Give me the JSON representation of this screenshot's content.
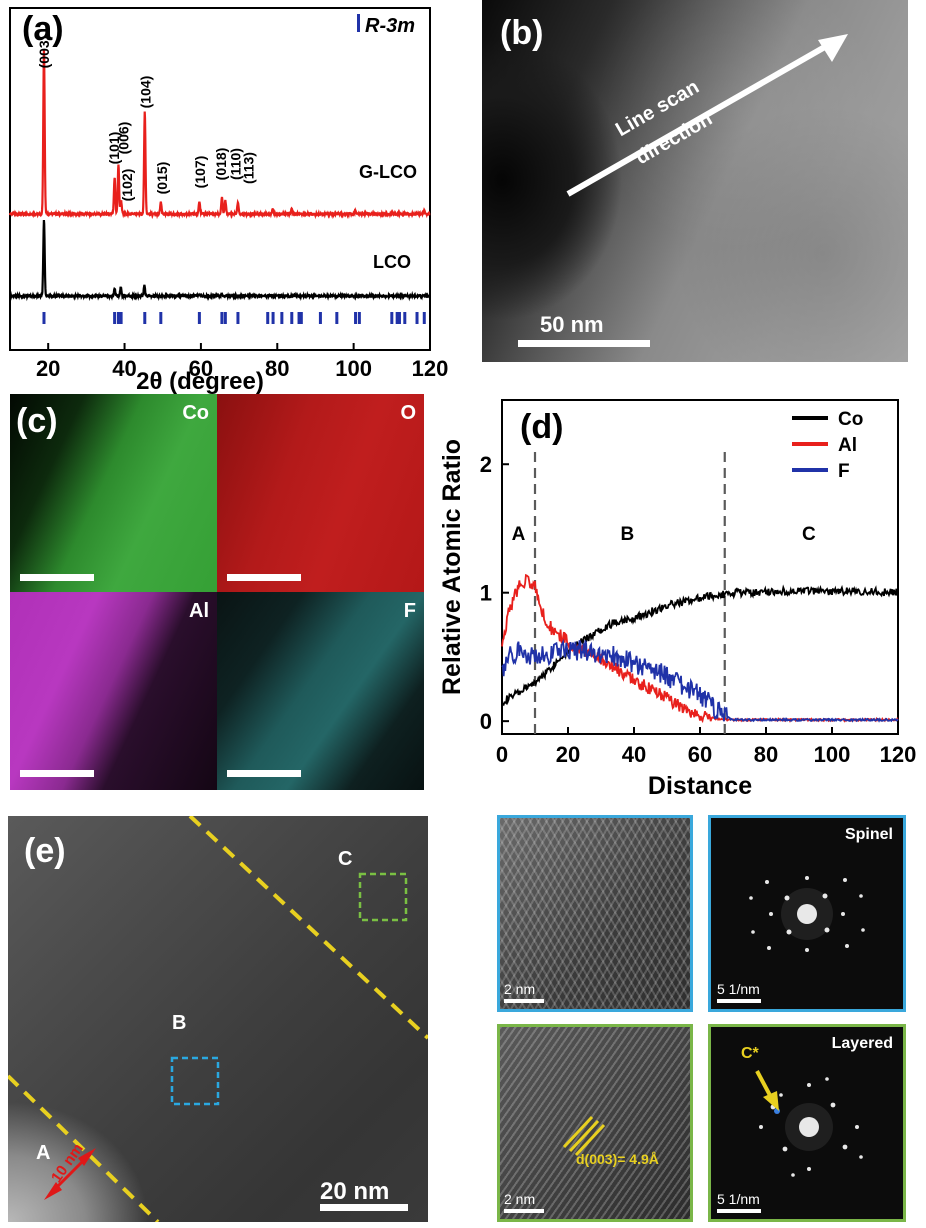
{
  "panels": {
    "a": {
      "letter": "(a)",
      "space_group": "R-3m",
      "series": [
        {
          "name": "G-LCO"
        },
        {
          "name": "LCO"
        }
      ],
      "peak_labels": [
        "(003)",
        "(101)",
        "(006)",
        "(102)",
        "(104)",
        "(015)",
        "(107)",
        "(018)",
        "(110)",
        "(113)"
      ],
      "xlabel": "2θ (degree)"
    },
    "b": {
      "letter": "(b)",
      "arrow_label_1": "Line scan",
      "arrow_label_2": "direction",
      "scalebar": "50 nm"
    },
    "c": {
      "letter": "(c)",
      "maps": [
        "Co",
        "O",
        "Al",
        "F"
      ]
    },
    "d": {
      "letter": "(d)",
      "region_labels": [
        "A",
        "B",
        "C"
      ]
    },
    "e": {
      "letter": "(e)",
      "region_A": "A",
      "region_B": "B",
      "region_C": "C",
      "width_label": "10 nm",
      "scalebar": "20 nm"
    },
    "insets": {
      "top_right_label": "Spinel",
      "bottom_right_label": "Layered",
      "scale_real": "2 nm",
      "scale_fft": "5 1/nm",
      "c_star": "C*",
      "d_spacing": "d(003)= 4.9Å"
    }
  },
  "chart_data": [
    {
      "type": "line",
      "panel": "a",
      "xlabel": "2θ (degree)",
      "xlim": [
        10,
        120
      ],
      "xticks": [
        20,
        40,
        60,
        80,
        100,
        120
      ],
      "series": [
        {
          "name": "G-LCO",
          "color": "#e8201c",
          "peaks": [
            [
              18.9,
              1.0
            ],
            [
              37.4,
              0.22
            ],
            [
              38.4,
              0.3
            ],
            [
              39.1,
              0.08
            ],
            [
              45.3,
              0.62
            ],
            [
              49.5,
              0.07
            ],
            [
              59.6,
              0.08
            ],
            [
              65.5,
              0.1
            ],
            [
              66.4,
              0.08
            ],
            [
              69.7,
              0.07
            ],
            [
              78.8,
              0.03
            ],
            [
              83.8,
              0.03
            ],
            [
              100.5,
              0.02
            ],
            [
              118.5,
              0.02
            ]
          ]
        },
        {
          "name": "LCO",
          "color": "#000000",
          "peaks": [
            [
              18.9,
              0.45
            ],
            [
              37.4,
              0.04
            ],
            [
              39.0,
              0.05
            ],
            [
              45.2,
              0.06
            ],
            [
              59.5,
              0.01
            ],
            [
              65.4,
              0.01
            ]
          ]
        }
      ],
      "reference_ticks": [
        18.9,
        37.4,
        38.4,
        39.1,
        45.3,
        49.5,
        59.6,
        65.5,
        66.4,
        69.7,
        77.5,
        78.9,
        81.2,
        83.8,
        85.7,
        86.3,
        91.3,
        95.6,
        100.5,
        101.5,
        110.0,
        111.4,
        112.0,
        113.4,
        116.6,
        118.5
      ]
    },
    {
      "type": "line",
      "panel": "d",
      "xlabel": "Distance",
      "ylabel": "Relative Atomic Ratio",
      "xlim": [
        0,
        120
      ],
      "ylim": [
        -0.1,
        2.5
      ],
      "xticks": [
        0,
        20,
        40,
        60,
        80,
        100,
        120
      ],
      "yticks": [
        0,
        1,
        2
      ],
      "vlines": [
        10,
        67.5
      ],
      "legend": "top-right",
      "series": [
        {
          "name": "Co",
          "color": "#000000",
          "x": [
            0,
            5,
            10,
            15,
            20,
            25,
            30,
            35,
            40,
            45,
            50,
            55,
            60,
            65,
            70,
            75,
            80,
            90,
            100,
            110,
            120
          ],
          "y": [
            0.15,
            0.22,
            0.3,
            0.42,
            0.55,
            0.63,
            0.72,
            0.78,
            0.8,
            0.85,
            0.9,
            0.93,
            0.96,
            0.98,
            1.0,
            1.0,
            1.01,
            1.01,
            1.01,
            1.01,
            1.0
          ]
        },
        {
          "name": "Al",
          "color": "#e8201c",
          "x": [
            0,
            2,
            5,
            8,
            10,
            12,
            15,
            20,
            25,
            30,
            35,
            40,
            45,
            50,
            55,
            60,
            65,
            70,
            80,
            100,
            120
          ],
          "y": [
            0.55,
            0.85,
            1.05,
            1.1,
            1.05,
            0.85,
            0.72,
            0.62,
            0.55,
            0.48,
            0.4,
            0.32,
            0.25,
            0.18,
            0.1,
            0.05,
            0.02,
            0.01,
            0.01,
            0.01,
            0.01
          ]
        },
        {
          "name": "F",
          "color": "#2032a8",
          "x": [
            0,
            2,
            5,
            10,
            15,
            20,
            25,
            30,
            35,
            40,
            45,
            50,
            55,
            60,
            63,
            65,
            67,
            70,
            80,
            100,
            120
          ],
          "y": [
            0.4,
            0.5,
            0.55,
            0.5,
            0.52,
            0.55,
            0.55,
            0.52,
            0.5,
            0.45,
            0.42,
            0.35,
            0.28,
            0.2,
            0.15,
            0.08,
            0.04,
            0.01,
            0.01,
            0.01,
            0.01
          ]
        }
      ]
    }
  ]
}
